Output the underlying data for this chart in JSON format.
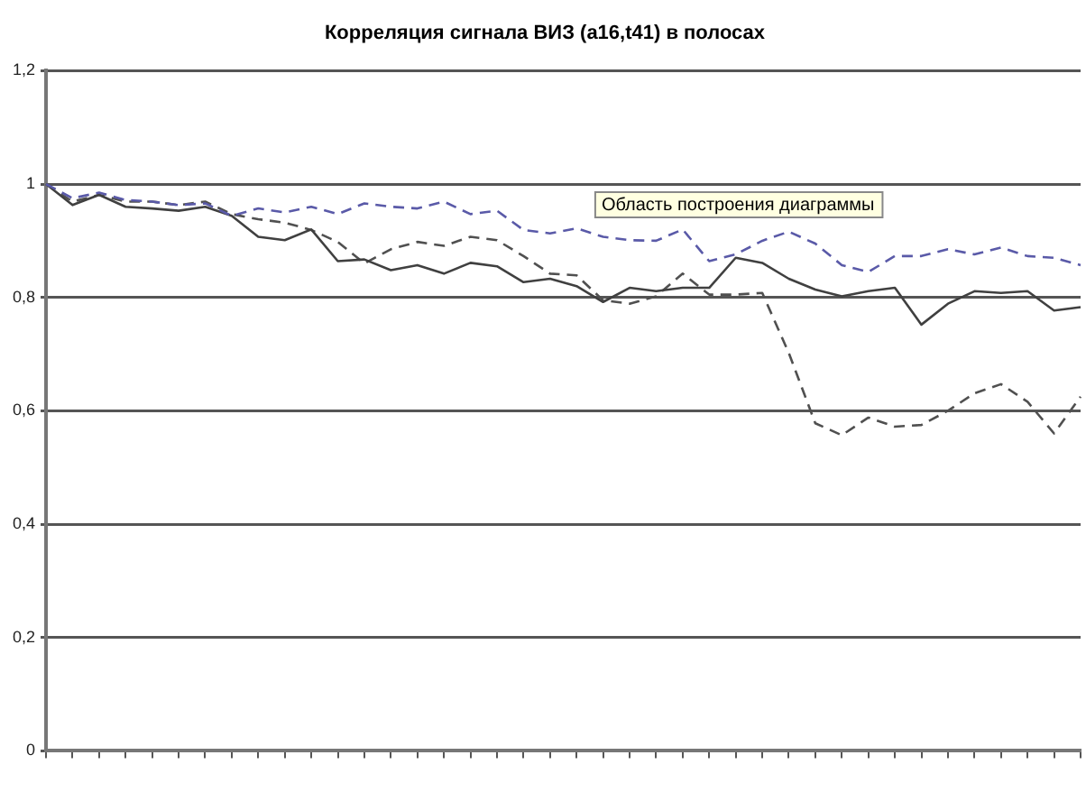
{
  "chart_data": {
    "type": "line",
    "title": "Корреляция сигнала ВИЗ (a16,t41) в полосах",
    "categories": [
      null,
      null,
      null,
      null,
      null,
      null,
      null,
      null,
      null,
      null,
      null,
      null,
      null,
      null,
      null,
      null,
      null,
      null,
      null,
      null,
      null,
      null,
      null,
      null,
      null,
      null,
      null,
      null,
      null,
      null,
      null,
      null,
      null,
      null,
      null,
      null,
      null,
      null,
      null,
      null
    ],
    "series": [
      {
        "color": "#5a5aa8",
        "line_style": "dashed",
        "values": [
          1,
          0.975,
          0.985,
          0.972,
          0.969,
          0.963,
          0.966,
          0.944,
          0.957,
          0.95,
          0.96,
          0.947,
          0.966,
          0.96,
          0.957,
          0.969,
          0.947,
          0.953,
          0.919,
          0.913,
          0.922,
          0.907,
          0.901,
          0.9,
          0.92,
          0.864,
          0.876,
          0.9,
          0.916,
          0.895,
          0.857,
          0.845,
          0.873,
          0.873,
          0.885,
          0.876,
          0.888,
          0.873,
          0.87,
          0.857
        ]
      },
      {
        "color": "#404040",
        "line_style": "solid",
        "values": [
          1,
          0.963,
          0.981,
          0.96,
          0.957,
          0.953,
          0.96,
          0.944,
          0.907,
          0.901,
          0.92,
          0.864,
          0.867,
          0.848,
          0.857,
          0.842,
          0.861,
          0.855,
          0.827,
          0.833,
          0.82,
          0.792,
          0.817,
          0.811,
          0.817,
          0.817,
          0.87,
          0.861,
          0.833,
          0.814,
          0.802,
          0.811,
          0.817,
          0.752,
          0.789,
          0.811,
          0.808,
          0.811,
          0.777,
          0.783
        ]
      },
      {
        "color": "#505050",
        "line_style": "dashed",
        "values": [
          1,
          0.969,
          0.981,
          0.969,
          0.969,
          0.963,
          0.969,
          0.947,
          0.938,
          0.932,
          0.919,
          0.898,
          0.86,
          0.885,
          0.898,
          0.891,
          0.907,
          0.901,
          0.873,
          0.842,
          0.839,
          0.795,
          0.789,
          0.802,
          0.842,
          0.805,
          0.805,
          0.808,
          0.702,
          0.578,
          0.557,
          0.588,
          0.572,
          0.575,
          0.6,
          0.631,
          0.647,
          0.616,
          0.56,
          0.625
        ]
      }
    ],
    "ylim": [
      0,
      1.2
    ],
    "yticks": [
      0,
      {
        "value": 0.2,
        "label": "0,2"
      },
      {
        "value": 0.4,
        "label": "0,4"
      },
      {
        "value": 0.6,
        "label": "0,6"
      },
      {
        "value": 0.8,
        "label": "0,8"
      },
      1,
      {
        "value": 1.2,
        "label": "1,2"
      }
    ],
    "grid": "y",
    "legend": false,
    "marker": "none",
    "annotations": [
      "Область построения диаграммы"
    ]
  }
}
